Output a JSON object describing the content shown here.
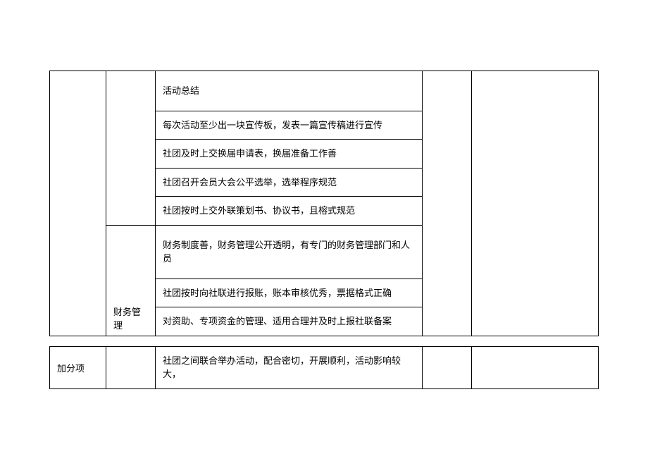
{
  "table1": {
    "rows": [
      {
        "text": "活动总结",
        "tall": true
      },
      {
        "text": "每次活动至少出一块宣传板，发表一篇宣传稿进行宣传",
        "tall": false
      },
      {
        "text": "社团及时上交换届申请表，换届准备工作善",
        "tall": false
      },
      {
        "text": "社团召开会员大会公平选举，选举程序规范",
        "tall": false
      },
      {
        "text": "社团按时上交外联策划书、协议书，且榕式规范",
        "tall": false
      }
    ],
    "section2_label": "财务管理",
    "section2_rows": [
      {
        "text": "财务制度善，财务管理公开透明，有专门的财务管理部门和人员",
        "tall": true
      },
      {
        "text": "社团按时向社联进行报账，账本审核优秀，票据格式正确",
        "tall": false
      },
      {
        "text": "对资助、专项资金的管理、适用合理并及时上报社联备案",
        "tall": false
      }
    ]
  },
  "table2": {
    "label": "加分项",
    "text": "社团之间联合举办活动，配合密切，开展顺利，活动影响较大，"
  },
  "style": {
    "border_color": "#000000",
    "font_size": 13,
    "background": "#ffffff"
  }
}
